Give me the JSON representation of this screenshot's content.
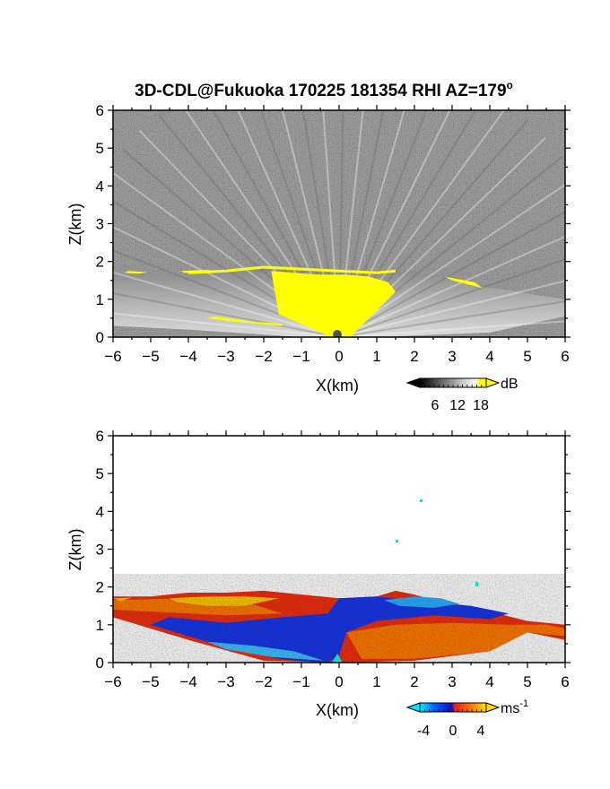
{
  "title": {
    "main": "3D-CDL@Fukuoka 170225 181354 RHI AZ=179",
    "degree": "o"
  },
  "chart_data": [
    {
      "type": "heatmap",
      "name": "reflectivity-panel",
      "xlabel": "X(km)",
      "ylabel": "Z(km)",
      "xlim": [
        -6,
        6
      ],
      "ylim": [
        0,
        6
      ],
      "x_ticks": [
        -6,
        -5,
        -4,
        -3,
        -2,
        -1,
        0,
        1,
        2,
        3,
        4,
        5,
        6
      ],
      "y_ticks": [
        0,
        1,
        2,
        3,
        4,
        5,
        6
      ],
      "echo_top_km": [
        [
          -6,
          1.7
        ],
        [
          -5,
          1.65
        ],
        [
          -4,
          1.65
        ],
        [
          -3,
          1.7
        ],
        [
          -2,
          1.8
        ],
        [
          -1,
          1.75
        ],
        [
          0,
          1.7
        ],
        [
          1,
          1.65
        ],
        [
          1.5,
          1.7
        ],
        [
          2,
          1.75
        ],
        [
          2.5,
          1.6
        ],
        [
          3,
          1.55
        ],
        [
          3.5,
          1.4
        ],
        [
          4,
          1.3
        ],
        [
          4.5,
          1.25
        ],
        [
          5,
          1.15
        ],
        [
          6,
          1.0
        ]
      ],
      "colorbar": {
        "unit": "dB",
        "ticks": [
          "6",
          "12",
          "18"
        ],
        "range": [
          0,
          21
        ],
        "colors": [
          "#000000",
          "#ffffff",
          "#ffff00"
        ]
      }
    },
    {
      "type": "heatmap",
      "name": "doppler-velocity-panel",
      "xlabel": "X(km)",
      "ylabel": "Z(km)",
      "xlim": [
        -6,
        6
      ],
      "ylim": [
        0,
        6
      ],
      "x_ticks": [
        -6,
        -5,
        -4,
        -3,
        -2,
        -1,
        0,
        1,
        2,
        3,
        4,
        5,
        6
      ],
      "y_ticks": [
        0,
        1,
        2,
        3,
        4,
        5,
        6
      ],
      "echo_top_km": [
        [
          -6,
          1.75
        ],
        [
          -5,
          1.75
        ],
        [
          -4,
          1.85
        ],
        [
          -3,
          1.85
        ],
        [
          -2,
          1.9
        ],
        [
          -1,
          1.8
        ],
        [
          0,
          1.7
        ],
        [
          1,
          1.75
        ],
        [
          1.5,
          1.9
        ],
        [
          2,
          1.8
        ],
        [
          2.5,
          1.65
        ],
        [
          3,
          1.55
        ],
        [
          3.5,
          1.45
        ],
        [
          4,
          1.35
        ],
        [
          5,
          1.1
        ],
        [
          6,
          1.0
        ]
      ],
      "colorbar": {
        "unit": "ms",
        "unit_exponent": "-1",
        "ticks": [
          "-4",
          "0",
          "4"
        ],
        "range": [
          -5,
          5
        ],
        "colors": [
          "#00e5ff",
          "#0050ff",
          "#1010c0",
          "#e02020",
          "#ff7a00",
          "#ffe000"
        ]
      }
    }
  ]
}
